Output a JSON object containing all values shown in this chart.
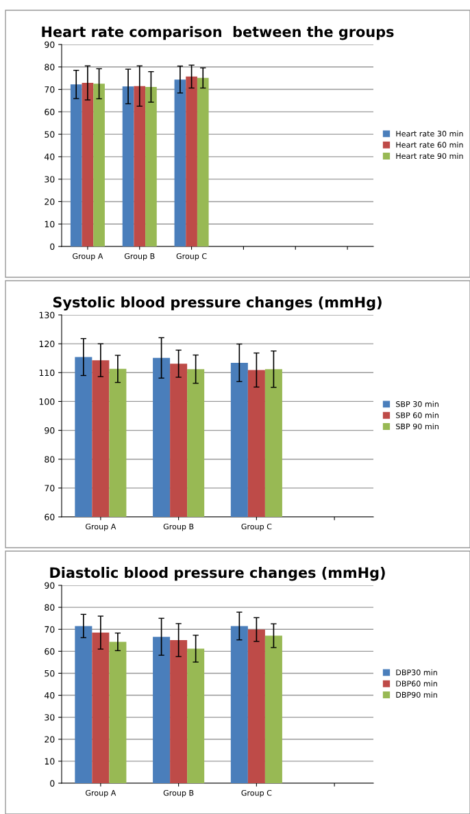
{
  "chart_data": [
    {
      "type": "bar",
      "title": "Heart rate comparison  between the groups",
      "categories": [
        "Group A",
        "Group B",
        "Group C",
        null,
        null,
        null
      ],
      "ylim": [
        0,
        90
      ],
      "yticks": [
        0,
        10,
        20,
        30,
        40,
        50,
        60,
        70,
        80,
        90
      ],
      "grid": "y",
      "legend": "right",
      "series": [
        {
          "name": "Heart rate 30 min",
          "color": "#4a7ebb",
          "values": [
            72.2,
            71.3,
            74.4,
            null,
            null,
            null
          ],
          "errors": [
            6.3,
            7.7,
            6.0,
            null,
            null,
            null
          ]
        },
        {
          "name": "Heart rate 60 min",
          "color": "#be4b48",
          "values": [
            72.9,
            71.5,
            75.7,
            null,
            null,
            null
          ],
          "errors": [
            7.6,
            9.0,
            5.1,
            null,
            null,
            null
          ]
        },
        {
          "name": "Heart rate 90 min",
          "color": "#98b954",
          "values": [
            72.5,
            71.1,
            75.1,
            null,
            null,
            null
          ],
          "errors": [
            6.7,
            6.8,
            4.5,
            null,
            null,
            null
          ]
        }
      ]
    },
    {
      "type": "bar",
      "title": "Systolic blood pressure changes (mmHg)",
      "categories": [
        "Group A",
        "Group B",
        "Group C",
        null
      ],
      "ylim": [
        60,
        130
      ],
      "yticks": [
        60,
        70,
        80,
        90,
        100,
        110,
        120,
        130
      ],
      "grid": "y",
      "legend": "right",
      "series": [
        {
          "name": "SBP 30 min",
          "color": "#4a7ebb",
          "values": [
            115.4,
            115.1,
            113.4,
            null
          ],
          "errors": [
            6.4,
            7.0,
            6.5,
            null
          ]
        },
        {
          "name": "SBP 60 min",
          "color": "#be4b48",
          "values": [
            114.3,
            113.1,
            110.9,
            null
          ],
          "errors": [
            5.7,
            4.7,
            5.9,
            null
          ]
        },
        {
          "name": "SBP 90 min",
          "color": "#98b954",
          "values": [
            111.3,
            111.2,
            111.2,
            null
          ],
          "errors": [
            4.7,
            4.9,
            6.3,
            null
          ]
        }
      ]
    },
    {
      "type": "bar",
      "title": "Diastolic blood pressure changes (mmHg)",
      "categories": [
        "Group A",
        "Group B",
        "Group C",
        null
      ],
      "ylim": [
        0,
        90
      ],
      "yticks": [
        0,
        10,
        20,
        30,
        40,
        50,
        60,
        70,
        80,
        90
      ],
      "grid": "y",
      "legend": "right",
      "series": [
        {
          "name": "DBP30 min",
          "color": "#4a7ebb",
          "values": [
            71.5,
            66.6,
            71.5,
            null
          ],
          "errors": [
            5.3,
            8.4,
            6.3,
            null
          ]
        },
        {
          "name": "DBP60 min",
          "color": "#be4b48",
          "values": [
            68.5,
            65.1,
            69.9,
            null
          ],
          "errors": [
            7.5,
            7.5,
            5.4,
            null
          ]
        },
        {
          "name": "DBP90 min",
          "color": "#98b954",
          "values": [
            64.3,
            61.2,
            67.1,
            null
          ],
          "errors": [
            4.0,
            6.1,
            5.4,
            null
          ]
        }
      ]
    }
  ]
}
